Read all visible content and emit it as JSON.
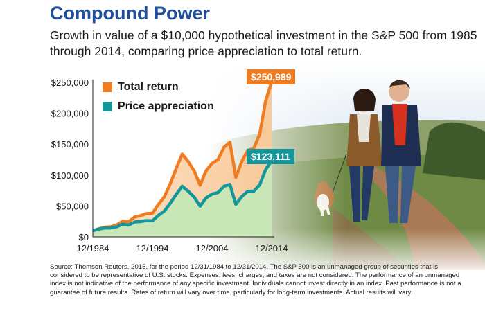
{
  "header": {
    "title": "Compound Power",
    "subtitle": "Growth in value of a $10,000 hypothetical investment in the S&P 500 from 1985 through 2014, comparing price appreciation to total return."
  },
  "callouts": {
    "total_end": "$250,989",
    "price_end": "$123,111"
  },
  "footer": {
    "source": "Source: Thomson Reuters, 2015, for the period 12/31/1984 to 12/31/2014. The S&P 500 is an unmanaged group of securities that is considered to be representative of U.S. stocks. Expenses, fees, charges, and taxes are not considered. The performance of an unmanaged index is not indicative of the performance of any specific investment. Individuals cannot invest directly in an index. Past performance is not a guarantee of future results. Rates of return will vary over time, particularly for long-term investments. Actual results will vary."
  },
  "illustration": {
    "description_icon": "couple-walking-dog-photo-icon"
  },
  "colors": {
    "total_return": "#f07c22",
    "price_appreciation": "#13979a",
    "title": "#1f4e9c"
  },
  "chart_data": {
    "type": "area",
    "title": "",
    "xlabel": "",
    "ylabel": "",
    "x": [
      1984,
      1985,
      1986,
      1987,
      1988,
      1989,
      1990,
      1991,
      1992,
      1993,
      1994,
      1995,
      1996,
      1997,
      1998,
      1999,
      2000,
      2001,
      2002,
      2003,
      2004,
      2005,
      2006,
      2007,
      2008,
      2009,
      2010,
      2011,
      2012,
      2013,
      2014
    ],
    "x_tick_labels": [
      "12/1984",
      "12/1994",
      "12/2004",
      "12/2014"
    ],
    "x_tick_values": [
      1984,
      1994,
      2004,
      2014
    ],
    "y_tick_labels": [
      "$0",
      "$50,000",
      "$100,000",
      "$150,000",
      "$200,000",
      "$250,000"
    ],
    "y_tick_values": [
      0,
      50000,
      100000,
      150000,
      200000,
      250000
    ],
    "ylim": [
      0,
      250000
    ],
    "grid": false,
    "legend_position": "top-left",
    "series": [
      {
        "name": "Total return",
        "values": [
          10000,
          13200,
          15600,
          16400,
          19200,
          25200,
          24400,
          31900,
          34300,
          37700,
          38200,
          52600,
          64700,
          86200,
          111000,
          134000,
          122000,
          107000,
          83600,
          107000,
          119000,
          125000,
          145000,
          153000,
          96200,
          122000,
          140000,
          143000,
          166000,
          220000,
          250989
        ]
      },
      {
        "name": "Price appreciation",
        "values": [
          10000,
          12600,
          14300,
          14500,
          16300,
          20700,
          19100,
          24000,
          24800,
          26300,
          25900,
          34800,
          41800,
          54500,
          68800,
          82000,
          74000,
          64500,
          49700,
          63000,
          69300,
          71600,
          81800,
          85000,
          52700,
          65300,
          73900,
          73900,
          84300,
          109000,
          123111
        ]
      }
    ]
  }
}
